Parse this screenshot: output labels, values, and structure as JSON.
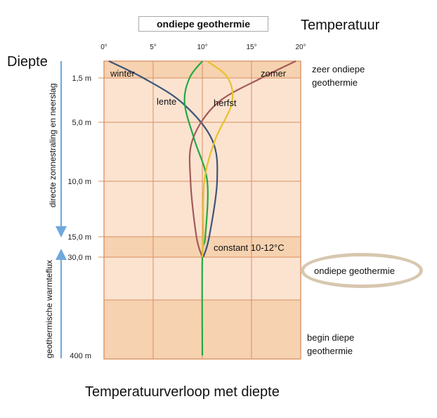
{
  "chart_data": {
    "type": "line",
    "title": "ondiepe geothermie",
    "caption": "Temperatuurverloop met diepte",
    "xlabel": "Temperatuur",
    "ylabel": "Diepte",
    "xlim": [
      0,
      20
    ],
    "x_ticks": [
      "0°",
      "5°",
      "10°",
      "15°",
      "20°"
    ],
    "x_tick_values": [
      0,
      5,
      10,
      15,
      20
    ],
    "y_ticks": [
      "1,5 m",
      "5,0 m",
      "10,0 m",
      "15,0 m",
      "30,0 m",
      "400 m"
    ],
    "y_axis_note": "depth axis is non-linear (broken between 15 m and 30 m, and between 30 m and 400 m)",
    "series": [
      {
        "name": "winter",
        "color": "#3f5577",
        "points": [
          [
            0.5,
            0
          ],
          [
            4,
            1.5
          ],
          [
            8,
            3.5
          ],
          [
            11,
            6.5
          ],
          [
            11.5,
            10
          ],
          [
            10.7,
            15
          ],
          [
            10.1,
            30
          ]
        ]
      },
      {
        "name": "zomer",
        "color": "#a25a5a",
        "points": [
          [
            19.5,
            0
          ],
          [
            16,
            1.5
          ],
          [
            11.5,
            3.5
          ],
          [
            9,
            6.5
          ],
          [
            8.8,
            10
          ],
          [
            9.4,
            15
          ],
          [
            10,
            30
          ]
        ]
      },
      {
        "name": "lente",
        "color": "#22aa44",
        "points": [
          [
            10,
            0
          ],
          [
            8.7,
            1.5
          ],
          [
            8.2,
            3.5
          ],
          [
            9.2,
            6.5
          ],
          [
            10.5,
            10
          ],
          [
            10.3,
            15
          ],
          [
            10,
            30
          ],
          [
            10,
            400
          ]
        ]
      },
      {
        "name": "herfst",
        "color": "#e8c12a",
        "points": [
          [
            10.5,
            0
          ],
          [
            12.6,
            1.5
          ],
          [
            13,
            3.5
          ],
          [
            11.3,
            6.5
          ],
          [
            10.2,
            10
          ],
          [
            10.1,
            15
          ],
          [
            10,
            30
          ]
        ]
      }
    ],
    "annotations": [
      "constant 10-12°C"
    ],
    "zones": [
      {
        "label": "zeer ondiepe geothermie"
      },
      {
        "label": "ondiepe geothermie"
      },
      {
        "label": "begin diepe geothermie"
      }
    ],
    "side_labels": [
      "directe zonnestraling en neerslag",
      "geothermische warmteflux"
    ],
    "grid": true
  }
}
